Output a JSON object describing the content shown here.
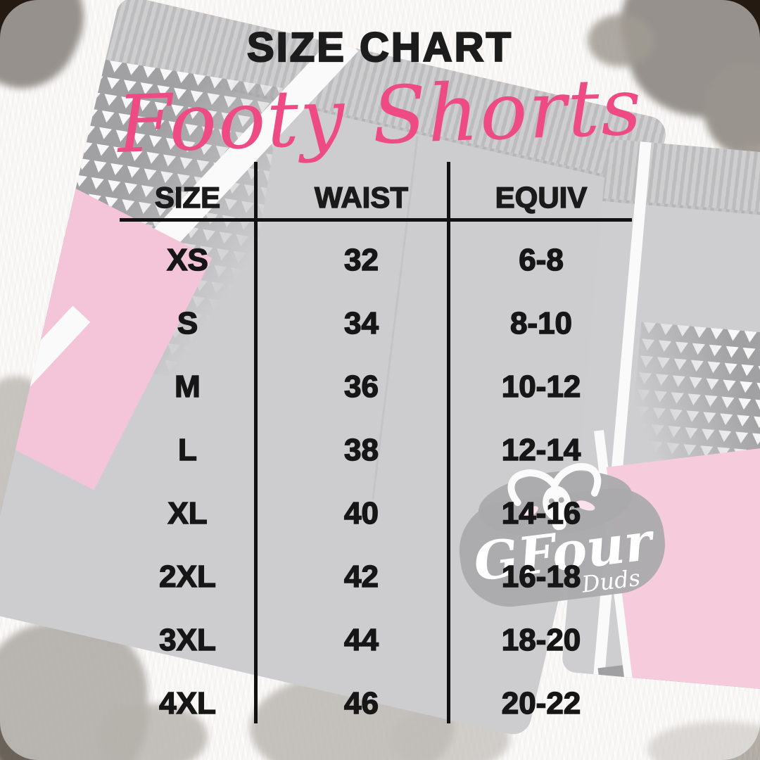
{
  "title": "SIZE CHART",
  "subtitle": "Footy Shorts",
  "table": {
    "columns": [
      "SIZE",
      "WAIST",
      "EQUIV"
    ],
    "rows": [
      {
        "size": "XS",
        "waist": "32",
        "equiv": "6-8"
      },
      {
        "size": "S",
        "waist": "34",
        "equiv": "8-10"
      },
      {
        "size": "M",
        "waist": "36",
        "equiv": "10-12"
      },
      {
        "size": "L",
        "waist": "38",
        "equiv": "12-14"
      },
      {
        "size": "XL",
        "waist": "40",
        "equiv": "14-16"
      },
      {
        "size": "2XL",
        "waist": "42",
        "equiv": "16-18"
      },
      {
        "size": "3XL",
        "waist": "44",
        "equiv": "18-20"
      },
      {
        "size": "4XL",
        "waist": "46",
        "equiv": "20-22"
      }
    ]
  },
  "logo": {
    "brand": "GFour",
    "tagline": "Duds"
  },
  "colors": {
    "accent_pink": "#ee4a84",
    "text_black": "#1c1c1c",
    "line_black": "#111111",
    "fabric_gray": "#9a9a9e",
    "fabric_pink": "#ec93b6",
    "cowhide_dark": "#241a11"
  }
}
